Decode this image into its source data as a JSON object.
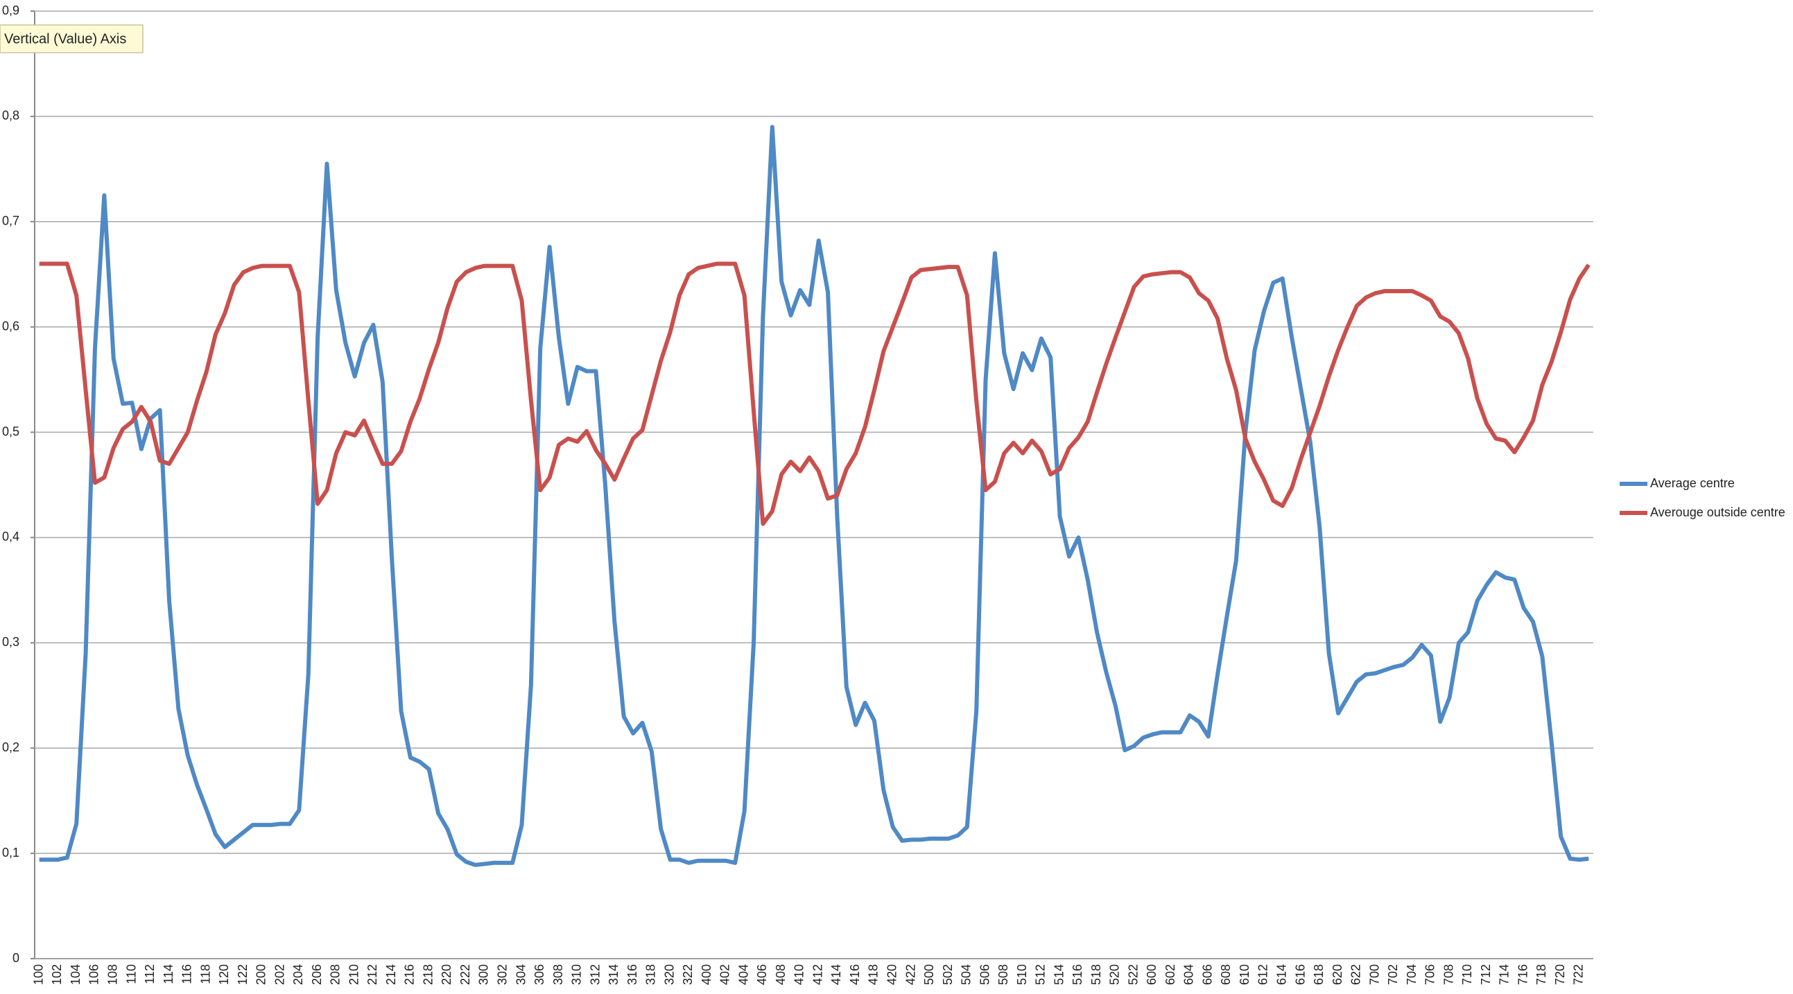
{
  "chart_data": {
    "type": "line",
    "annotation": "Vertical (Value) Axis",
    "categories": [
      "100",
      null,
      "102",
      null,
      "104",
      null,
      "106",
      null,
      "108",
      null,
      "110",
      null,
      "112",
      null,
      "114",
      null,
      "116",
      null,
      "118",
      null,
      "120",
      null,
      "122",
      null,
      "200",
      null,
      "202",
      null,
      "204",
      null,
      "206",
      null,
      "208",
      null,
      "210",
      null,
      "212",
      null,
      "214",
      null,
      "216",
      null,
      "218",
      null,
      "220",
      null,
      "222",
      null,
      "300",
      null,
      "302",
      null,
      "304",
      null,
      "306",
      null,
      "308",
      null,
      "310",
      null,
      "312",
      null,
      "314",
      null,
      "316",
      null,
      "318",
      null,
      "320",
      null,
      "322",
      null,
      "400",
      null,
      "402",
      null,
      "404",
      null,
      "406",
      null,
      "408",
      null,
      "410",
      null,
      "412",
      null,
      "414",
      null,
      "416",
      null,
      "418",
      null,
      "420",
      null,
      "422",
      null,
      "500",
      null,
      "502",
      null,
      "504",
      null,
      "506",
      null,
      "508",
      null,
      "510",
      null,
      "512",
      null,
      "514",
      null,
      "516",
      null,
      "518",
      null,
      "520",
      null,
      "522",
      null,
      "600",
      null,
      "602",
      null,
      "604",
      null,
      "606",
      null,
      "608",
      null,
      "610",
      null,
      "612",
      null,
      "614",
      null,
      "616",
      null,
      "618",
      null,
      "620",
      null,
      "622",
      null,
      "700",
      null,
      "702",
      null,
      "704",
      null,
      "706",
      null,
      "708",
      null,
      "710",
      null,
      "712",
      null,
      "714",
      null,
      "716",
      null,
      "718",
      null,
      "720",
      null,
      "722",
      null
    ],
    "series": [
      {
        "name": "Average centre",
        "color": "#4f89c6",
        "values": [
          0.094,
          0.094,
          0.094,
          0.096,
          0.128,
          0.29,
          0.58,
          0.725,
          0.57,
          0.527,
          0.528,
          0.484,
          0.513,
          0.521,
          0.34,
          0.237,
          0.193,
          0.165,
          0.142,
          0.118,
          0.106,
          0.113,
          0.12,
          0.127,
          0.127,
          0.127,
          0.128,
          0.128,
          0.141,
          0.27,
          0.59,
          0.755,
          0.635,
          0.585,
          0.553,
          0.585,
          0.602,
          0.548,
          0.38,
          0.235,
          0.191,
          0.187,
          0.18,
          0.138,
          0.123,
          0.099,
          0.092,
          0.089,
          0.09,
          0.091,
          0.091,
          0.091,
          0.127,
          0.26,
          0.58,
          0.676,
          0.59,
          0.527,
          0.562,
          0.558,
          0.558,
          0.45,
          0.32,
          0.23,
          0.214,
          0.224,
          0.197,
          0.123,
          0.094,
          0.094,
          0.091,
          0.093,
          0.093,
          0.093,
          0.093,
          0.091,
          0.14,
          0.3,
          0.61,
          0.79,
          0.643,
          0.611,
          0.635,
          0.621,
          0.682,
          0.633,
          0.42,
          0.258,
          0.222,
          0.243,
          0.226,
          0.16,
          0.125,
          0.112,
          0.113,
          0.113,
          0.114,
          0.114,
          0.114,
          0.117,
          0.125,
          0.235,
          0.55,
          0.67,
          0.575,
          0.541,
          0.575,
          0.559,
          0.589,
          0.571,
          0.42,
          0.382,
          0.4,
          0.36,
          0.31,
          0.272,
          0.24,
          0.198,
          0.202,
          0.21,
          0.213,
          0.215,
          0.215,
          0.215,
          0.231,
          0.225,
          0.211,
          0.27,
          0.325,
          0.378,
          0.5,
          0.578,
          0.615,
          0.642,
          0.646,
          0.59,
          0.54,
          0.49,
          0.41,
          0.29,
          0.233,
          0.248,
          0.263,
          0.27,
          0.271,
          0.274,
          0.277,
          0.279,
          0.286,
          0.298,
          0.288,
          0.225,
          0.248,
          0.3,
          0.31,
          0.34,
          0.355,
          0.367,
          0.362,
          0.36,
          0.333,
          0.32,
          0.287,
          0.205,
          0.116,
          0.095,
          0.094,
          0.095
        ]
      },
      {
        "name": "Averouge outside centre",
        "color": "#c9504d",
        "values": [
          0.66,
          0.66,
          0.66,
          0.66,
          0.63,
          0.54,
          0.452,
          0.457,
          0.485,
          0.503,
          0.51,
          0.524,
          0.51,
          0.473,
          0.47,
          0.485,
          0.5,
          0.53,
          0.557,
          0.593,
          0.613,
          0.64,
          0.652,
          0.656,
          0.658,
          0.658,
          0.658,
          0.658,
          0.633,
          0.53,
          0.432,
          0.445,
          0.48,
          0.5,
          0.497,
          0.511,
          0.49,
          0.47,
          0.47,
          0.482,
          0.51,
          0.532,
          0.56,
          0.585,
          0.618,
          0.643,
          0.652,
          0.656,
          0.658,
          0.658,
          0.658,
          0.658,
          0.625,
          0.53,
          0.445,
          0.457,
          0.488,
          0.494,
          0.491,
          0.501,
          0.483,
          0.47,
          0.455,
          0.475,
          0.494,
          0.502,
          0.535,
          0.568,
          0.595,
          0.63,
          0.65,
          0.656,
          0.658,
          0.66,
          0.66,
          0.66,
          0.63,
          0.52,
          0.413,
          0.425,
          0.46,
          0.472,
          0.463,
          0.476,
          0.463,
          0.437,
          0.44,
          0.465,
          0.48,
          0.505,
          0.54,
          0.577,
          0.6,
          0.623,
          0.647,
          0.654,
          0.655,
          0.656,
          0.657,
          0.657,
          0.63,
          0.53,
          0.445,
          0.453,
          0.48,
          0.49,
          0.48,
          0.492,
          0.482,
          0.46,
          0.465,
          0.485,
          0.495,
          0.51,
          0.538,
          0.565,
          0.59,
          0.614,
          0.638,
          0.648,
          0.65,
          0.651,
          0.652,
          0.652,
          0.647,
          0.632,
          0.625,
          0.608,
          0.57,
          0.54,
          0.494,
          0.472,
          0.455,
          0.435,
          0.43,
          0.447,
          0.475,
          0.5,
          0.525,
          0.553,
          0.578,
          0.6,
          0.62,
          0.628,
          0.632,
          0.634,
          0.634,
          0.634,
          0.634,
          0.63,
          0.625,
          0.61,
          0.605,
          0.594,
          0.57,
          0.532,
          0.508,
          0.494,
          0.492,
          0.481,
          0.495,
          0.511,
          0.545,
          0.567,
          0.595,
          0.626,
          0.646,
          0.659
        ]
      }
    ],
    "ylim": [
      0,
      0.9
    ],
    "yticks": [
      0,
      {
        "value": 0.1,
        "label": "0,1"
      },
      {
        "value": 0.2,
        "label": "0,2"
      },
      {
        "value": 0.3,
        "label": "0,3"
      },
      {
        "value": 0.4,
        "label": "0,4"
      },
      {
        "value": 0.5,
        "label": "0,5"
      },
      {
        "value": 0.6,
        "label": "0,6"
      },
      {
        "value": 0.7,
        "label": "0,7"
      },
      {
        "value": 0.8,
        "label": "0,8"
      },
      {
        "value": 0.9,
        "label": "0,9"
      }
    ],
    "grid": true,
    "legend": "right"
  }
}
